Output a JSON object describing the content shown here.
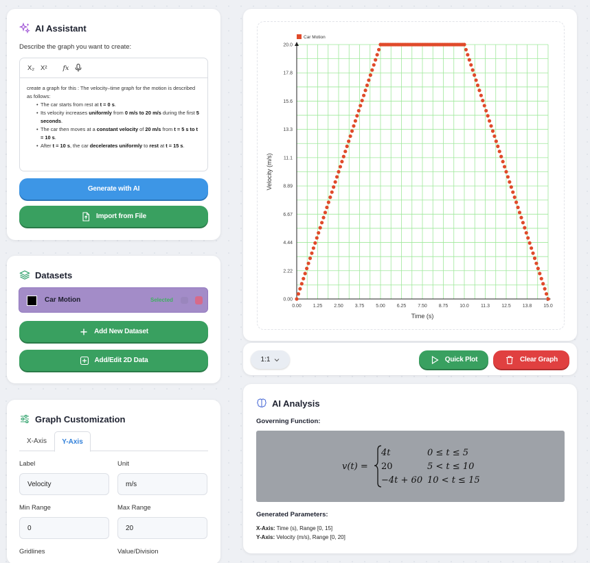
{
  "ai_assistant": {
    "title": "AI Assistant",
    "describe_label": "Describe the graph you want to create:",
    "toolbar": {
      "subscript": "X₂",
      "superscript": "X²",
      "function": "fx"
    },
    "prompt": {
      "intro": "create a graph for this :  The velocity–time graph for the motion is described as follows:",
      "bullets": [
        [
          "The car starts from rest at ",
          "t = 0 s",
          "."
        ],
        [
          "Its velocity increases ",
          "uniformly",
          " from ",
          "0 m/s to 20 m/s",
          " during the first ",
          "5 seconds",
          "."
        ],
        [
          "The car then moves at a ",
          "constant velocity",
          " of ",
          "20 m/s",
          " from ",
          "t = 5 s to t = 10 s",
          "."
        ],
        [
          "After ",
          "t = 10 s",
          ", the car ",
          "decelerates uniformly",
          " to ",
          "rest",
          " at ",
          "t = 15 s",
          "."
        ]
      ]
    },
    "generate_button": "Generate with AI",
    "import_button": "Import from File"
  },
  "datasets": {
    "title": "Datasets",
    "items": [
      {
        "name": "Car Motion",
        "status": "Selected",
        "color": "#000000"
      }
    ],
    "add_button": "Add New Dataset",
    "edit_button": "Add/Edit 2D Data"
  },
  "customization": {
    "title": "Graph Customization",
    "tabs": [
      "X-Axis",
      "Y-Axis"
    ],
    "active_tab": "Y-Axis",
    "fields": {
      "label": {
        "label": "Label",
        "value": "Velocity"
      },
      "unit": {
        "label": "Unit",
        "value": "m/s"
      },
      "min": {
        "label": "Min Range",
        "value": "0"
      },
      "max": {
        "label": "Max Range",
        "value": "20"
      },
      "gridlines": {
        "label": "Gridlines"
      },
      "value_division": {
        "label": "Value/Division"
      }
    }
  },
  "controls": {
    "ratio": "1:1",
    "quick_plot": "Quick Plot",
    "clear_graph": "Clear Graph"
  },
  "analysis": {
    "title": "AI Analysis",
    "governing_label": "Governing Function:",
    "function_lhs": "v(t) =",
    "cases": [
      {
        "expr": "4t",
        "cond": "0 ≤ t ≤ 5"
      },
      {
        "expr": "20",
        "cond": "5 < t ≤ 10"
      },
      {
        "expr": "−4t + 60",
        "cond": "10 < t ≤ 15"
      }
    ],
    "generated_label": "Generated Parameters:",
    "x_param": {
      "key": "X-Axis:",
      "value": " Time (s), Range [0, 15]"
    },
    "y_param": {
      "key": "Y-Axis:",
      "value": " Velocity (m/s), Range [0, 20]"
    }
  },
  "chart_data": {
    "type": "scatter",
    "legend": "Car Motion",
    "legend_position": "top-left",
    "series_color": "#e04a2a",
    "xlabel": "Time (s)",
    "ylabel": "Velocity (m/s)",
    "xlim": [
      0,
      15
    ],
    "ylim": [
      0,
      20
    ],
    "x_ticks": [
      "0.00",
      "1.25",
      "2.50",
      "3.75",
      "5.00",
      "6.25",
      "7.50",
      "8.75",
      "10.0",
      "11.3",
      "12.5",
      "13.8",
      "15.0"
    ],
    "y_ticks": [
      "0.00",
      "2.22",
      "4.44",
      "6.67",
      "8.89",
      "11.1",
      "13.3",
      "15.6",
      "17.8",
      "20.0"
    ],
    "grid": true,
    "grid_color": "#9ee89a",
    "pieces": [
      {
        "x_start": 0,
        "x_end": 5,
        "y_start": 0,
        "y_end": 20
      },
      {
        "x_start": 5,
        "x_end": 10,
        "y_start": 20,
        "y_end": 20
      },
      {
        "x_start": 10,
        "x_end": 15,
        "y_start": 20,
        "y_end": 0
      }
    ],
    "sample_step": 0.1
  }
}
